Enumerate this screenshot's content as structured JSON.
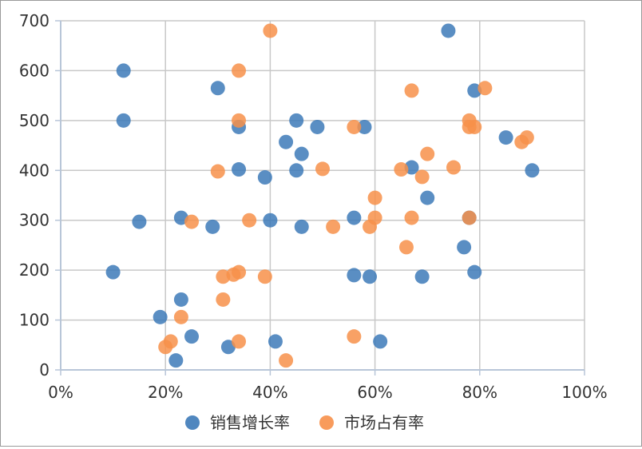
{
  "chart_data": {
    "type": "scatter",
    "title": "",
    "xlabel": "",
    "ylabel": "",
    "xlim": [
      0,
      100
    ],
    "ylim": [
      0,
      700
    ],
    "x_ticks": [
      "0%",
      "20%",
      "40%",
      "60%",
      "80%",
      "100%"
    ],
    "y_ticks": [
      "0",
      "100",
      "200",
      "300",
      "400",
      "500",
      "600",
      "700"
    ],
    "grid": true,
    "legend_position": "bottom",
    "colors": {
      "series1": "#3d7ab8",
      "series2": "#f7904a"
    },
    "series": [
      {
        "name": "销售增长率",
        "points": [
          [
            12,
            600
          ],
          [
            12,
            500
          ],
          [
            74,
            680
          ],
          [
            79,
            560
          ],
          [
            30,
            565
          ],
          [
            34,
            487
          ],
          [
            45,
            500
          ],
          [
            49,
            487
          ],
          [
            58,
            487
          ],
          [
            43,
            457
          ],
          [
            46,
            433
          ],
          [
            34,
            402
          ],
          [
            45,
            400
          ],
          [
            39,
            386
          ],
          [
            67,
            406
          ],
          [
            85,
            466
          ],
          [
            90,
            400
          ],
          [
            70,
            345
          ],
          [
            15,
            297
          ],
          [
            23,
            305
          ],
          [
            29,
            287
          ],
          [
            40,
            300
          ],
          [
            46,
            287
          ],
          [
            56,
            305
          ],
          [
            78,
            305
          ],
          [
            77,
            246
          ],
          [
            10,
            196
          ],
          [
            56,
            190
          ],
          [
            59,
            187
          ],
          [
            69,
            187
          ],
          [
            79,
            196
          ],
          [
            19,
            106
          ],
          [
            23,
            141
          ],
          [
            25,
            67
          ],
          [
            32,
            46
          ],
          [
            41,
            57
          ],
          [
            22,
            19
          ],
          [
            61,
            57
          ]
        ]
      },
      {
        "name": "市场占有率",
        "points": [
          [
            40,
            680
          ],
          [
            34,
            600
          ],
          [
            67,
            560
          ],
          [
            81,
            565
          ],
          [
            34,
            500
          ],
          [
            56,
            487
          ],
          [
            78,
            500
          ],
          [
            79,
            487
          ],
          [
            78,
            487
          ],
          [
            88,
            457
          ],
          [
            89,
            466
          ],
          [
            70,
            433
          ],
          [
            30,
            398
          ],
          [
            50,
            403
          ],
          [
            65,
            402
          ],
          [
            69,
            387
          ],
          [
            75,
            406
          ],
          [
            60,
            345
          ],
          [
            25,
            297
          ],
          [
            36,
            300
          ],
          [
            52,
            287
          ],
          [
            59,
            287
          ],
          [
            60,
            305
          ],
          [
            67,
            305
          ],
          [
            78,
            305
          ],
          [
            66,
            246
          ],
          [
            31,
            187
          ],
          [
            33,
            191
          ],
          [
            34,
            196
          ],
          [
            39,
            187
          ],
          [
            31,
            141
          ],
          [
            23,
            106
          ],
          [
            20,
            46
          ],
          [
            21,
            57
          ],
          [
            34,
            57
          ],
          [
            56,
            67
          ],
          [
            43,
            19
          ]
        ]
      }
    ]
  }
}
